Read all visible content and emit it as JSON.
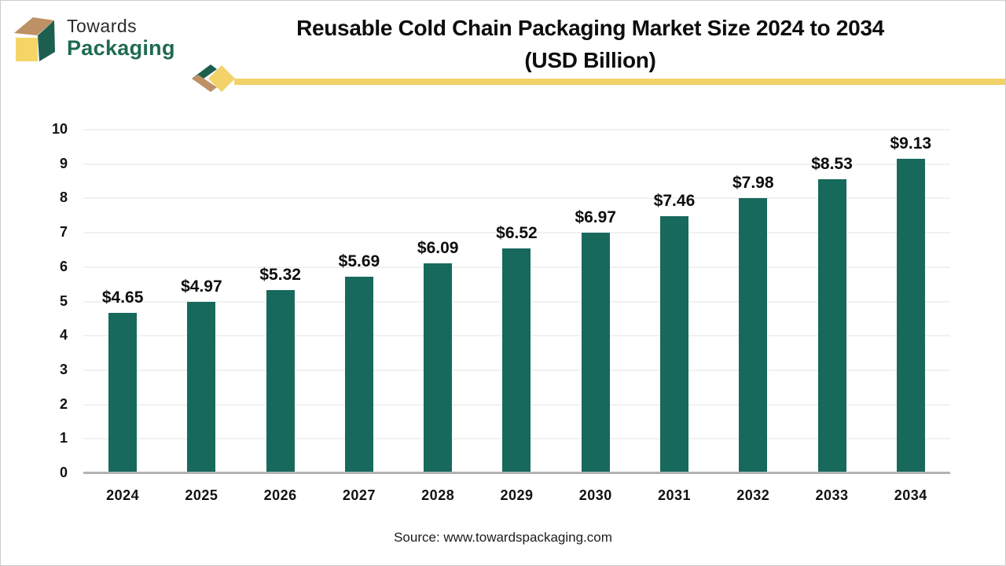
{
  "logo": {
    "line1": "Towards",
    "line2": "Packaging"
  },
  "title": {
    "line1": "Reusable Cold Chain Packaging Market Size 2024 to 2034",
    "line2": "(USD Billion)"
  },
  "source": "Source: www.towardspackaging.com",
  "colors": {
    "bar": "#17695C",
    "accent_yellow": "#F2D269",
    "logo_green": "#1E6A52",
    "logo_tan": "#BE9065",
    "logo_yellow": "#F5D566",
    "gridline": "#f1f1f1",
    "baseline": "#b3b3b3"
  },
  "chart_data": {
    "type": "bar",
    "title": "Reusable Cold Chain Packaging Market Size 2024 to 2034 (USD Billion)",
    "categories": [
      "2024",
      "2025",
      "2026",
      "2027",
      "2028",
      "2029",
      "2030",
      "2031",
      "2032",
      "2033",
      "2034"
    ],
    "values": [
      4.65,
      4.97,
      5.32,
      5.69,
      6.09,
      6.52,
      6.97,
      7.46,
      7.98,
      8.53,
      9.13
    ],
    "labels": [
      "$4.65",
      "$4.97",
      "$5.32",
      "$5.69",
      "$6.09",
      "$6.52",
      "$6.97",
      "$7.46",
      "$7.98",
      "$8.53",
      "$9.13"
    ],
    "xlabel": "",
    "ylabel": "",
    "ylim": [
      0,
      10
    ],
    "yticks": [
      0,
      1,
      2,
      3,
      4,
      5,
      6,
      7,
      8,
      9,
      10
    ],
    "grid": true,
    "legend": false,
    "bar_color": "#17695C"
  }
}
